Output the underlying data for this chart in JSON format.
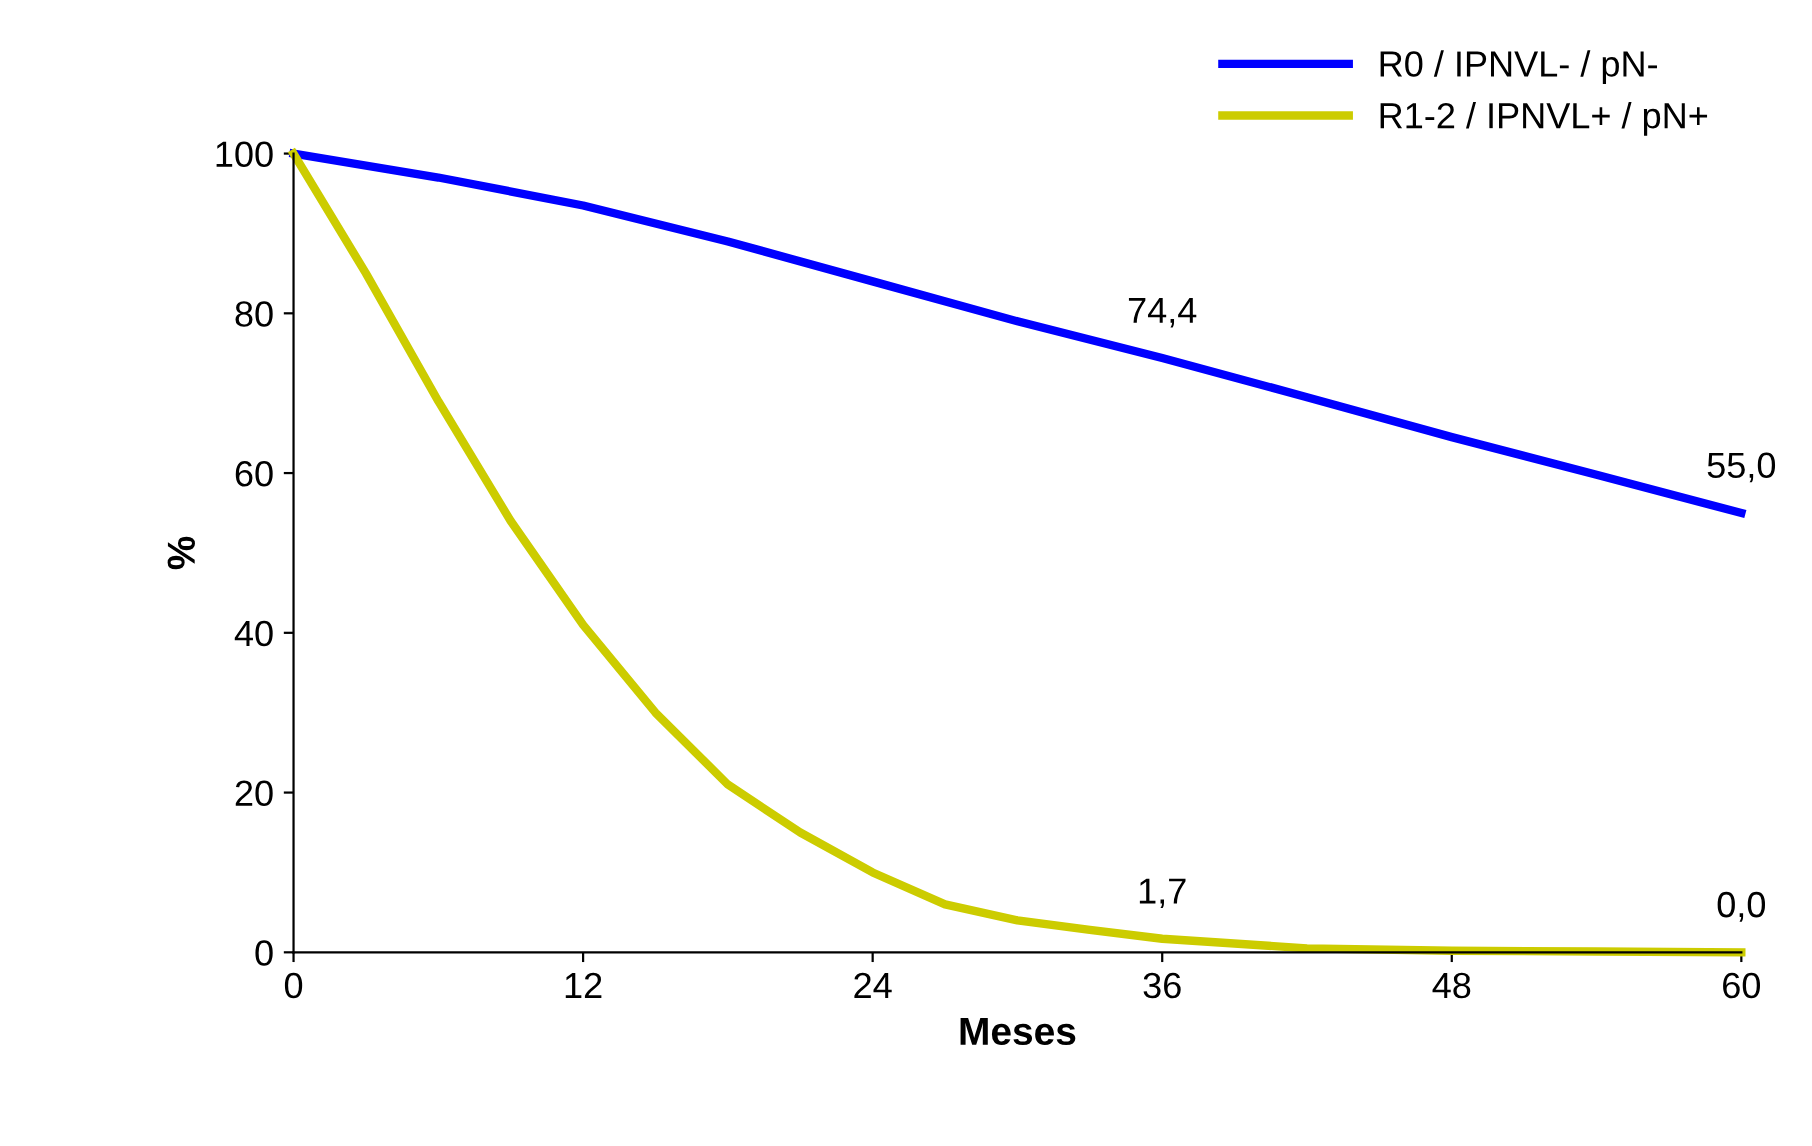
{
  "chart_data": {
    "type": "line",
    "xlabel": "Meses",
    "ylabel": "%",
    "xlim": [
      0,
      60
    ],
    "xticks": [
      0,
      12,
      24,
      36,
      48,
      60
    ],
    "ylim": [
      0,
      100
    ],
    "yticks": [
      0,
      20,
      40,
      60,
      80,
      100
    ],
    "grid": false,
    "legend": "top right",
    "marker": "none",
    "line_style": "solid",
    "series": [
      {
        "name": "R0 / IPNVL- / pN-",
        "color": "#0000ff",
        "x": [
          0,
          6,
          12,
          18,
          24,
          30,
          36,
          42,
          48,
          54,
          60
        ],
        "values": [
          100,
          97,
          93.5,
          89,
          84,
          79,
          74.4,
          69.5,
          64.5,
          59.8,
          55
        ],
        "value_labels": [
          null,
          null,
          null,
          null,
          null,
          null,
          "74,4",
          null,
          null,
          null,
          "55,0"
        ]
      },
      {
        "name": "R1-2 / IPNVL+ / pN+",
        "color": "#cccc00",
        "x": [
          0,
          3,
          6,
          9,
          12,
          15,
          18,
          21,
          24,
          27,
          30,
          33,
          36,
          42,
          48,
          54,
          60
        ],
        "values": [
          100,
          85,
          69,
          54,
          41,
          30,
          21,
          15,
          10,
          6,
          4,
          2.8,
          1.7,
          0.5,
          0.2,
          0.1,
          0
        ],
        "value_labels": [
          null,
          null,
          null,
          null,
          null,
          null,
          null,
          null,
          null,
          null,
          null,
          null,
          "1,7",
          null,
          null,
          null,
          "0,0"
        ]
      }
    ]
  }
}
